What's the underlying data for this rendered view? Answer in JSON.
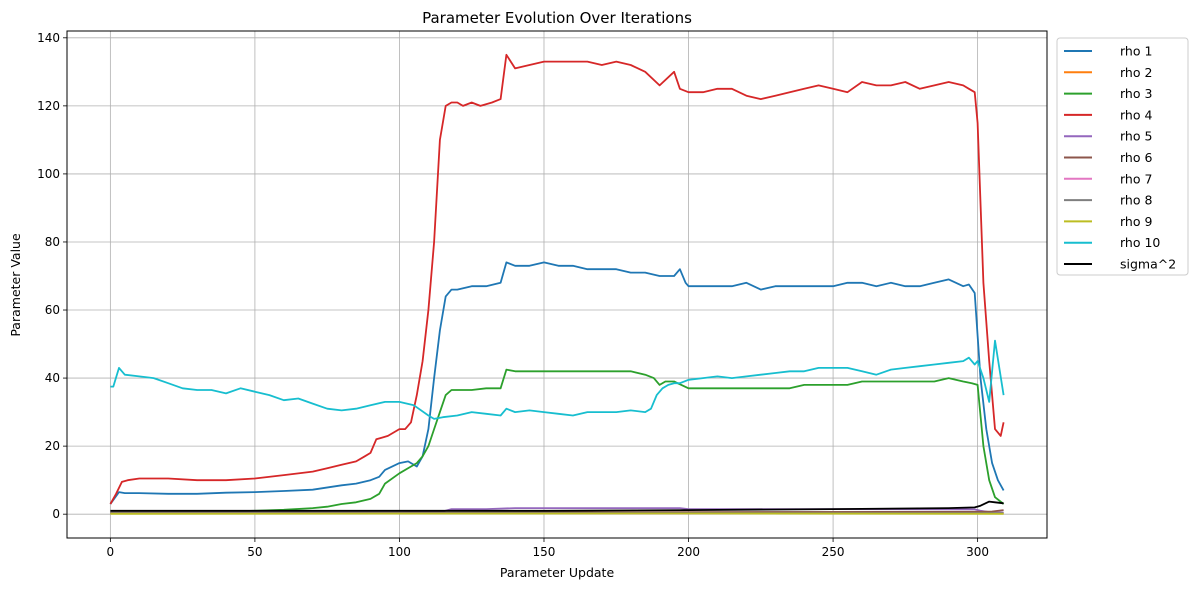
{
  "chart_data": {
    "type": "line",
    "title": "Parameter Evolution Over Iterations",
    "xlabel": "Parameter Update",
    "ylabel": "Parameter Value",
    "xlim": [
      -15,
      324
    ],
    "ylim": [
      -7,
      142
    ],
    "xticks": [
      0,
      50,
      100,
      150,
      200,
      250,
      300
    ],
    "yticks": [
      0,
      20,
      40,
      60,
      80,
      100,
      120,
      140
    ],
    "grid": true,
    "legend_position": "outside upper right",
    "series": [
      {
        "name": "rho 1",
        "color": "#1f77b4",
        "x": [
          0,
          3,
          5,
          10,
          20,
          30,
          40,
          50,
          60,
          70,
          80,
          85,
          90,
          93,
          95,
          100,
          103,
          106,
          108,
          110,
          112,
          114,
          116,
          118,
          120,
          125,
          130,
          135,
          137,
          140,
          145,
          150,
          155,
          160,
          165,
          170,
          175,
          180,
          185,
          190,
          195,
          197,
          199,
          200,
          205,
          210,
          215,
          220,
          225,
          230,
          235,
          240,
          245,
          250,
          255,
          260,
          265,
          270,
          275,
          280,
          285,
          290,
          295,
          297,
          299,
          301,
          303,
          305,
          307,
          309
        ],
        "y": [
          3,
          6.5,
          6.2,
          6.2,
          6,
          6,
          6.3,
          6.5,
          6.8,
          7.2,
          8.5,
          9,
          10,
          11,
          13,
          15,
          15.5,
          14,
          17,
          25,
          40,
          54,
          64,
          66,
          66,
          67,
          67,
          68,
          74,
          73,
          73,
          74,
          73,
          73,
          72,
          72,
          72,
          71,
          71,
          70,
          70,
          72,
          68,
          67,
          67,
          67,
          67,
          68,
          66,
          67,
          67,
          67,
          67,
          67,
          68,
          68,
          67,
          68,
          67,
          67,
          68,
          69,
          67,
          67.5,
          65,
          40,
          25,
          15,
          10,
          7
        ]
      },
      {
        "name": "rho 2",
        "color": "#ff7f0e",
        "x": [
          0,
          100,
          200,
          309
        ],
        "y": [
          0.3,
          0.3,
          0.3,
          0.3
        ]
      },
      {
        "name": "rho 3",
        "color": "#2ca02c",
        "x": [
          0,
          20,
          40,
          50,
          60,
          70,
          75,
          80,
          85,
          90,
          93,
          95,
          100,
          104,
          106,
          108,
          110,
          112,
          114,
          116,
          118,
          120,
          125,
          130,
          135,
          137,
          140,
          145,
          150,
          155,
          160,
          165,
          170,
          175,
          180,
          185,
          188,
          190,
          192,
          195,
          200,
          205,
          210,
          215,
          220,
          225,
          230,
          235,
          240,
          245,
          250,
          255,
          260,
          265,
          270,
          275,
          280,
          285,
          290,
          295,
          298,
          300,
          302,
          304,
          306,
          309
        ],
        "y": [
          0.5,
          0.5,
          0.8,
          1,
          1.3,
          1.8,
          2.2,
          3,
          3.5,
          4.5,
          6,
          9,
          12,
          14,
          15,
          17,
          20,
          25,
          30,
          35,
          36.5,
          36.5,
          36.5,
          37,
          37,
          42.5,
          42,
          42,
          42,
          42,
          42,
          42,
          42,
          42,
          42,
          41,
          40,
          38,
          39,
          39,
          37,
          37,
          37,
          37,
          37,
          37,
          37,
          37,
          38,
          38,
          38,
          38,
          39,
          39,
          39,
          39,
          39,
          39,
          40,
          39,
          38.5,
          38,
          20,
          10,
          5,
          3
        ]
      },
      {
        "name": "rho 4",
        "color": "#d62728",
        "x": [
          0,
          2,
          4,
          6,
          10,
          20,
          30,
          40,
          50,
          60,
          70,
          75,
          80,
          85,
          88,
          90,
          92,
          94,
          96,
          100,
          102,
          104,
          106,
          108,
          110,
          112,
          114,
          116,
          118,
          120,
          122,
          125,
          128,
          132,
          135,
          137,
          140,
          145,
          150,
          155,
          160,
          165,
          170,
          175,
          180,
          185,
          190,
          195,
          197,
          200,
          205,
          210,
          215,
          220,
          225,
          230,
          235,
          240,
          245,
          250,
          255,
          260,
          265,
          270,
          275,
          280,
          285,
          290,
          295,
          297,
          299,
          300,
          302,
          304,
          306,
          308,
          309
        ],
        "y": [
          3,
          6,
          9.5,
          10,
          10.5,
          10.5,
          10,
          10,
          10.5,
          11.5,
          12.5,
          13.5,
          14.5,
          15.5,
          17,
          18,
          22,
          22.5,
          23,
          25,
          25,
          27,
          35,
          45,
          60,
          80,
          110,
          120,
          121,
          121,
          120,
          121,
          120,
          121,
          122,
          135,
          131,
          132,
          133,
          133,
          133,
          133,
          132,
          133,
          132,
          130,
          126,
          130,
          125,
          124,
          124,
          125,
          125,
          123,
          122,
          123,
          124,
          125,
          126,
          125,
          124,
          127,
          126,
          126,
          127,
          125,
          126,
          127,
          126,
          125,
          124,
          115,
          68,
          45,
          25,
          23,
          27
        ]
      },
      {
        "name": "rho 5",
        "color": "#9467bd",
        "x": [
          0,
          100,
          112,
          115,
          118,
          120,
          130,
          140,
          150,
          170,
          197,
          200,
          250,
          299,
          301,
          305,
          309
        ],
        "y": [
          0.5,
          0.5,
          0.6,
          0.8,
          1.5,
          1.5,
          1.5,
          1.8,
          1.8,
          1.8,
          1.8,
          1.5,
          1.5,
          1.4,
          1,
          0.5,
          0.5
        ]
      },
      {
        "name": "rho 6",
        "color": "#8c564b",
        "x": [
          0,
          100,
          200,
          300,
          305,
          309
        ],
        "y": [
          0.4,
          0.4,
          0.6,
          0.7,
          0.8,
          1.2
        ]
      },
      {
        "name": "rho 7",
        "color": "#e377c2",
        "x": [
          0,
          309
        ],
        "y": [
          0.2,
          0.2
        ]
      },
      {
        "name": "rho 8",
        "color": "#7f7f7f",
        "x": [
          0,
          309
        ],
        "y": [
          0.3,
          0.3
        ]
      },
      {
        "name": "rho 9",
        "color": "#bcbd22",
        "x": [
          0,
          200,
          309
        ],
        "y": [
          0.1,
          0.2,
          0.1
        ]
      },
      {
        "name": "rho 10",
        "color": "#17becf",
        "x": [
          0,
          1,
          3,
          5,
          10,
          15,
          20,
          25,
          30,
          35,
          40,
          45,
          50,
          55,
          60,
          65,
          70,
          75,
          80,
          85,
          90,
          95,
          100,
          105,
          110,
          112,
          115,
          120,
          125,
          130,
          135,
          137,
          140,
          145,
          150,
          155,
          160,
          165,
          170,
          175,
          180,
          185,
          187,
          189,
          191,
          193,
          195,
          197,
          200,
          205,
          210,
          215,
          220,
          225,
          230,
          235,
          240,
          245,
          250,
          255,
          260,
          265,
          270,
          275,
          280,
          285,
          290,
          295,
          297,
          299,
          300,
          302,
          304,
          306,
          309
        ],
        "y": [
          37.5,
          37.5,
          43,
          41,
          40.5,
          40,
          38.5,
          37,
          36.5,
          36.5,
          35.5,
          37,
          36,
          35,
          33.5,
          34,
          32.5,
          31,
          30.5,
          31,
          32,
          33,
          33,
          32,
          29,
          28,
          28.5,
          29,
          30,
          29.5,
          29,
          31,
          30,
          30.5,
          30,
          29.5,
          29,
          30,
          30,
          30,
          30.5,
          30,
          31,
          35,
          37,
          38,
          38.5,
          38.5,
          39.5,
          40,
          40.5,
          40,
          40.5,
          41,
          41.5,
          42,
          42,
          43,
          43,
          43,
          42,
          41,
          42.5,
          43,
          43.5,
          44,
          44.5,
          45,
          46,
          44,
          45,
          40,
          33,
          51,
          35
        ]
      },
      {
        "name": "sigma^2",
        "color": "#000000",
        "x": [
          0,
          50,
          100,
          150,
          200,
          250,
          290,
          299,
          301,
          304,
          306,
          309
        ],
        "y": [
          1,
          1,
          1,
          1,
          1.2,
          1.5,
          1.8,
          2,
          2.5,
          3.7,
          3.5,
          3.2
        ]
      }
    ]
  }
}
